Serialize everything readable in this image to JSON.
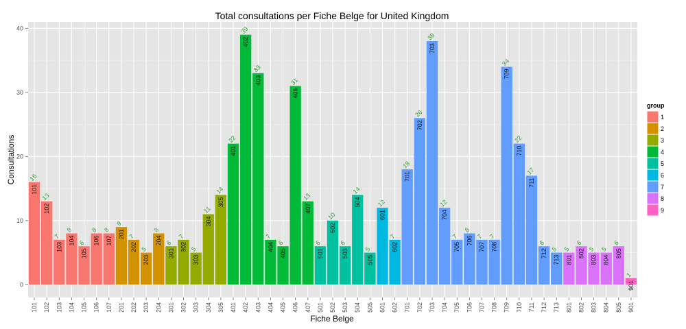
{
  "chart_data": {
    "type": "bar",
    "title": "Total consultations per Fiche Belge for United Kingdom",
    "xlabel": "Fiche Belge",
    "ylabel": "Consultations",
    "ylim": [
      -2,
      41
    ],
    "yticks": [
      0,
      10,
      20,
      30,
      40
    ],
    "grid": true,
    "legend": {
      "title": "group",
      "placement": "right",
      "items": [
        {
          "label": "1",
          "color": "#F8766D"
        },
        {
          "label": "2",
          "color": "#D39200"
        },
        {
          "label": "3",
          "color": "#93AA00"
        },
        {
          "label": "4",
          "color": "#00BA38"
        },
        {
          "label": "5",
          "color": "#00C19F"
        },
        {
          "label": "6",
          "color": "#00B9E3"
        },
        {
          "label": "7",
          "color": "#619CFF"
        },
        {
          "label": "8",
          "color": "#DB72FB"
        },
        {
          "label": "9",
          "color": "#FF61C3"
        }
      ]
    },
    "categories": [
      "101",
      "102",
      "103",
      "104",
      "105",
      "106",
      "107",
      "201",
      "202",
      "203",
      "204",
      "301",
      "302",
      "303",
      "304",
      "305",
      "401",
      "402",
      "403",
      "404",
      "405",
      "406",
      "407",
      "501",
      "502",
      "503",
      "504",
      "505",
      "601",
      "602",
      "701",
      "702",
      "703",
      "704",
      "705",
      "706",
      "707",
      "708",
      "709",
      "710",
      "711",
      "712",
      "713",
      "801",
      "802",
      "803",
      "804",
      "805",
      "901"
    ],
    "values": [
      16,
      13,
      7,
      8,
      6,
      8,
      8,
      9,
      7,
      5,
      8,
      6,
      7,
      5,
      11,
      14,
      22,
      39,
      33,
      7,
      6,
      31,
      13,
      6,
      10,
      6,
      14,
      5,
      12,
      7,
      18,
      26,
      38,
      12,
      7,
      8,
      7,
      7,
      34,
      22,
      17,
      6,
      5,
      5,
      6,
      5,
      5,
      6,
      1
    ],
    "groups": [
      "1",
      "1",
      "1",
      "1",
      "1",
      "1",
      "1",
      "2",
      "2",
      "2",
      "2",
      "3",
      "3",
      "3",
      "3",
      "3",
      "4",
      "4",
      "4",
      "4",
      "4",
      "4",
      "4",
      "5",
      "5",
      "5",
      "5",
      "5",
      "6",
      "6",
      "7",
      "7",
      "7",
      "7",
      "7",
      "7",
      "7",
      "7",
      "7",
      "7",
      "7",
      "7",
      "7",
      "8",
      "8",
      "8",
      "8",
      "8",
      "9"
    ]
  }
}
